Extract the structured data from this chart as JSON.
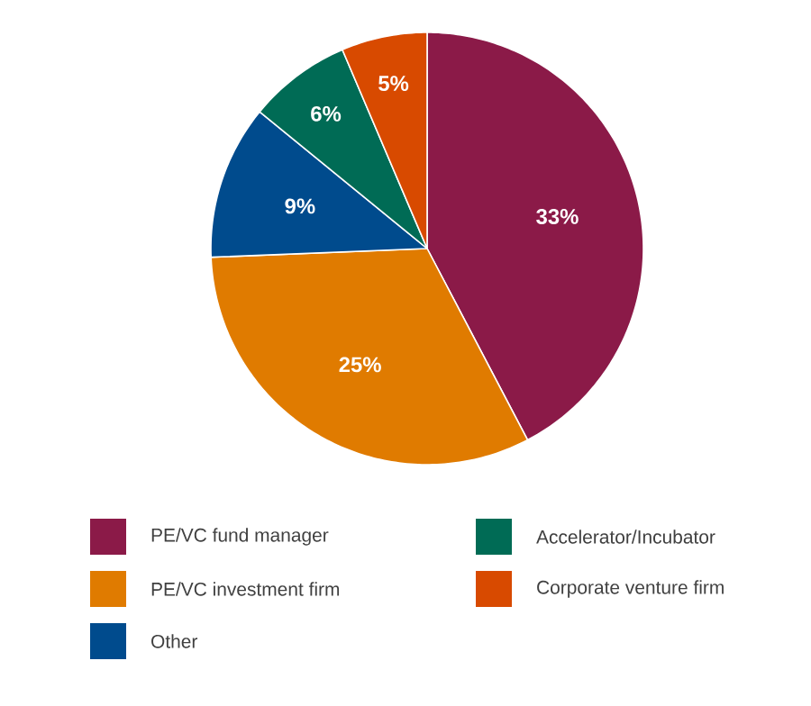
{
  "chart_data": {
    "type": "pie",
    "categories": [
      "PE/VC fund manager",
      "PE/VC investment firm",
      "Other",
      "Accelerator/Incubator",
      "Corporate venture firm"
    ],
    "values": [
      33,
      25,
      9,
      6,
      5
    ],
    "colors": [
      "#8b1a48",
      "#e07b00",
      "#004b8d",
      "#006b55",
      "#d84a00"
    ],
    "value_labels": [
      "33%",
      "25%",
      "9%",
      "6%",
      "5%"
    ],
    "legend": "bottom"
  }
}
